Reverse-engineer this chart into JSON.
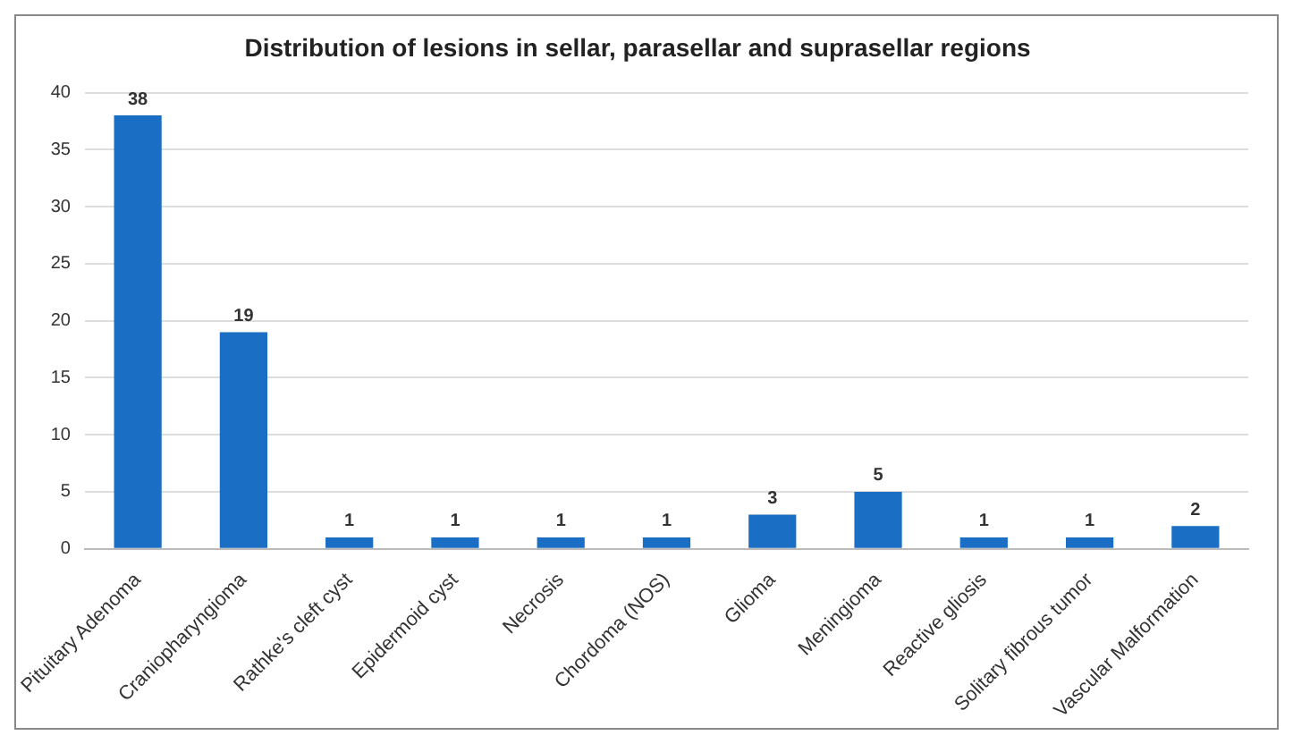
{
  "chart_data": {
    "type": "bar",
    "title": "Distribution of lesions in sellar, parasellar and suprasellar regions",
    "categories": [
      "Pituitary Adenoma",
      "Craniopharyngioma",
      "Rathke's cleft cyst",
      "Epidermoid cyst",
      "Necrosis",
      "Chordoma (NOS)",
      "Glioma",
      "Meningioma",
      "Reactive gliosis",
      "Solitary fibrous tumor",
      "Vascular Malformation"
    ],
    "values": [
      38,
      19,
      1,
      1,
      1,
      1,
      3,
      5,
      1,
      1,
      2
    ],
    "color": "#1a6fc4",
    "ylim": [
      0,
      40
    ],
    "yticks": [
      0,
      5,
      10,
      15,
      20,
      25,
      30,
      35,
      40
    ],
    "grid": "y",
    "data_labels": true,
    "legend": false
  }
}
